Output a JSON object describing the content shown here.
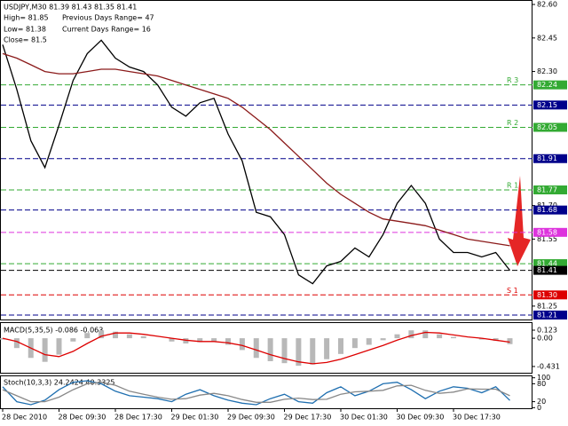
{
  "chart_data": [
    {
      "type": "line",
      "annotations": [
        "USDJPY,M30  81.39 81.43 81.35 81.41",
        "High= 81.85",
        "Previous Days Range= 47",
        "Low= 81.38",
        "Current Days Range= 16",
        "Close= 81.5"
      ],
      "categories": [
        "28 Dec 2010",
        null,
        null,
        null,
        "28 Dec 09:30",
        null,
        null,
        null,
        "28 Dec 17:30",
        null,
        null,
        null,
        "29 Dec 01:30",
        null,
        null,
        null,
        "29 Dec 09:30",
        null,
        null,
        null,
        "29 Dec 17:30",
        null,
        null,
        null,
        "30 Dec 01:30",
        null,
        null,
        null,
        "30 Dec 09:30",
        null,
        null,
        null,
        "30 Dec 17:30",
        null,
        null,
        null,
        null
      ],
      "series": [
        {
          "color": "#000000",
          "values": [
            82.42,
            82.22,
            81.99,
            81.87,
            82.06,
            82.26,
            82.38,
            82.44,
            82.36,
            82.32,
            82.3,
            82.24,
            82.14,
            82.1,
            82.16,
            82.18,
            82.02,
            81.9,
            81.67,
            81.65,
            81.57,
            81.39,
            81.35,
            81.43,
            81.45,
            81.51,
            81.47,
            81.57,
            81.71,
            81.79,
            81.71,
            81.55,
            81.49,
            81.49,
            81.47,
            81.49,
            81.41
          ]
        },
        {
          "color": "#8b1a1a",
          "values": [
            82.38,
            82.36,
            82.33,
            82.3,
            82.29,
            82.29,
            82.3,
            82.31,
            82.31,
            82.3,
            82.29,
            82.28,
            82.26,
            82.24,
            82.22,
            82.2,
            82.18,
            82.14,
            82.09,
            82.04,
            81.98,
            81.92,
            81.86,
            81.8,
            81.75,
            81.71,
            81.67,
            81.64,
            81.63,
            81.62,
            81.61,
            81.59,
            81.57,
            81.55,
            81.54,
            81.53,
            81.52
          ]
        }
      ],
      "ylim": [
        81.19,
        82.62
      ],
      "yticks": [
        {
          "value": 82.6,
          "label": "82.60"
        },
        {
          "value": 82.45,
          "label": "82.45"
        },
        {
          "value": 82.3,
          "label": "82.30"
        },
        {
          "value": 81.7,
          "label": "81.70"
        },
        {
          "value": 81.55,
          "label": "81.55"
        },
        {
          "value": 81.25,
          "label": "81.25"
        }
      ],
      "levels": [
        {
          "value": 82.24,
          "label": "82.24",
          "color": "#33aa33",
          "tag": "R 3"
        },
        {
          "value": 82.15,
          "label": "82.15",
          "color": "#00008b"
        },
        {
          "value": 82.05,
          "label": "82.05",
          "color": "#33aa33",
          "tag": "R 2"
        },
        {
          "value": 81.91,
          "label": "81.91",
          "color": "#00008b"
        },
        {
          "value": 81.77,
          "label": "81.77",
          "color": "#33aa33",
          "tag": "R 1"
        },
        {
          "value": 81.68,
          "label": "81.68",
          "color": "#00008b"
        },
        {
          "value": 81.58,
          "label": "81.58",
          "color": "#dd33dd"
        },
        {
          "value": 81.44,
          "label": "81.44",
          "color": "#33aa33"
        },
        {
          "value": 81.41,
          "label": "81.41",
          "color": "#000000"
        },
        {
          "value": 81.3,
          "label": "81.30",
          "color": "#dd0000",
          "tag": "S 1"
        },
        {
          "value": 81.21,
          "label": "81.21",
          "color": "#00008b"
        }
      ]
    },
    {
      "type": "bar_line",
      "title": "MACD(5,35,5) -0.086 -0.063",
      "values": [
        -0.02,
        -0.15,
        -0.3,
        -0.36,
        -0.25,
        -0.05,
        0.08,
        0.12,
        0.1,
        0.06,
        0.03,
        0.0,
        -0.05,
        -0.08,
        -0.06,
        -0.05,
        -0.1,
        -0.18,
        -0.3,
        -0.35,
        -0.38,
        -0.42,
        -0.4,
        -0.32,
        -0.24,
        -0.15,
        -0.1,
        -0.03,
        0.06,
        0.12,
        0.12,
        0.06,
        0.02,
        0.0,
        -0.02,
        -0.04,
        -0.09
      ],
      "color": "#b8b8b8",
      "line": {
        "color": "#dd0000",
        "values": [
          0.0,
          -0.05,
          -0.15,
          -0.25,
          -0.28,
          -0.2,
          -0.08,
          0.03,
          0.08,
          0.08,
          0.06,
          0.03,
          0.0,
          -0.03,
          -0.05,
          -0.05,
          -0.07,
          -0.11,
          -0.18,
          -0.25,
          -0.31,
          -0.36,
          -0.39,
          -0.37,
          -0.32,
          -0.25,
          -0.18,
          -0.11,
          -0.03,
          0.04,
          0.09,
          0.08,
          0.05,
          0.02,
          0.0,
          -0.03,
          -0.06
        ]
      },
      "ylim": [
        -0.54,
        0.245
      ],
      "yticks": [
        0.123,
        {
          "value": 0,
          "label": "0.00"
        },
        -0.431
      ]
    },
    {
      "type": "line",
      "title": "Stoch(10,3,3) 24.2424 40.3325",
      "series": [
        {
          "color": "#1f6fb0",
          "values": [
            70,
            20,
            10,
            25,
            60,
            85,
            90,
            80,
            55,
            40,
            35,
            30,
            20,
            45,
            60,
            40,
            25,
            15,
            10,
            30,
            45,
            20,
            15,
            50,
            70,
            40,
            55,
            80,
            85,
            60,
            30,
            55,
            70,
            65,
            50,
            70,
            24
          ]
        },
        {
          "color": "#888888",
          "values": [
            60,
            40,
            20,
            20,
            35,
            60,
            80,
            85,
            75,
            55,
            45,
            35,
            28,
            30,
            42,
            48,
            40,
            27,
            18,
            18,
            28,
            32,
            27,
            28,
            45,
            53,
            55,
            58,
            73,
            75,
            58,
            48,
            52,
            63,
            62,
            62,
            40
          ]
        }
      ],
      "ylim": [
        -5,
        105
      ],
      "yticks": [
        0,
        20,
        80,
        100
      ]
    }
  ]
}
